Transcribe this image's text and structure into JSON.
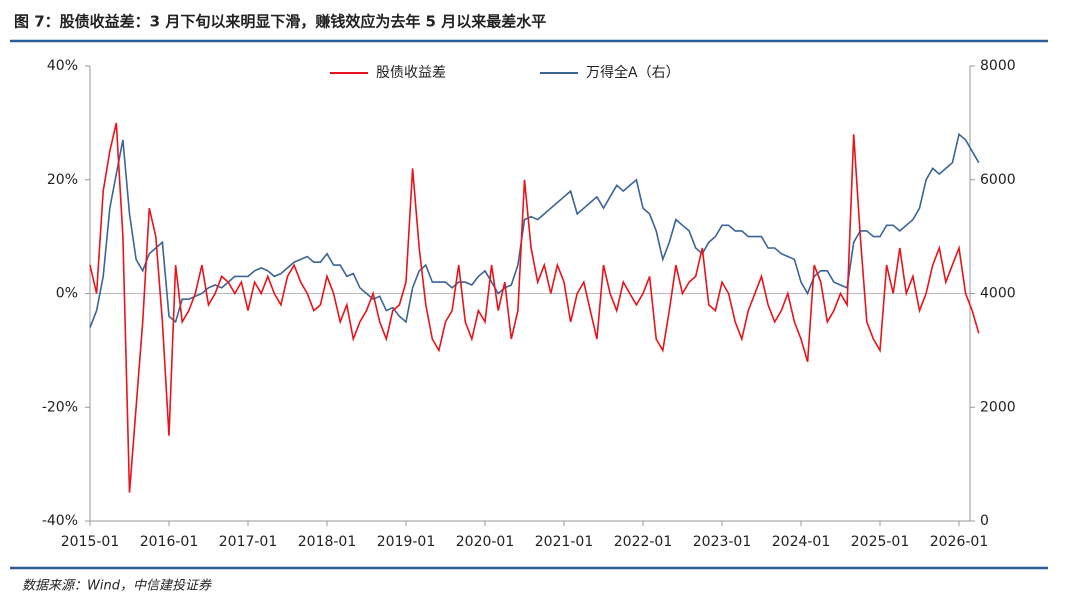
{
  "chart_data": {
    "type": "line",
    "title": "图 7：股债收益差：3 月下旬以来明显下滑，赚钱效应为去年 5 月以来最差水平",
    "source": "数据来源：Wind，中信建投证券",
    "x": [
      "2015-01",
      "2015-02",
      "2015-03",
      "2015-04",
      "2015-05",
      "2015-06",
      "2015-07",
      "2015-08",
      "2015-09",
      "2015-10",
      "2015-11",
      "2015-12",
      "2016-01",
      "2016-02",
      "2016-03",
      "2016-04",
      "2016-05",
      "2016-06",
      "2016-07",
      "2016-08",
      "2016-09",
      "2016-10",
      "2016-11",
      "2016-12",
      "2017-01",
      "2017-02",
      "2017-03",
      "2017-04",
      "2017-05",
      "2017-06",
      "2017-07",
      "2017-08",
      "2017-09",
      "2017-10",
      "2017-11",
      "2017-12",
      "2018-01",
      "2018-02",
      "2018-03",
      "2018-04",
      "2018-05",
      "2018-06",
      "2018-07",
      "2018-08",
      "2018-09",
      "2018-10",
      "2018-11",
      "2018-12",
      "2019-01",
      "2019-02",
      "2019-03",
      "2019-04",
      "2019-05",
      "2019-06",
      "2019-07",
      "2019-08",
      "2019-09",
      "2019-10",
      "2019-11",
      "2019-12",
      "2020-01",
      "2020-02",
      "2020-03",
      "2020-04",
      "2020-05",
      "2020-06",
      "2020-07",
      "2020-08",
      "2020-09",
      "2020-10",
      "2020-11",
      "2020-12",
      "2021-01",
      "2021-02",
      "2021-03",
      "2021-04",
      "2021-05",
      "2021-06",
      "2021-07",
      "2021-08",
      "2021-09",
      "2021-10",
      "2021-11",
      "2021-12",
      "2022-01",
      "2022-02",
      "2022-03",
      "2022-04",
      "2022-05",
      "2022-06",
      "2022-07",
      "2022-08",
      "2022-09",
      "2022-10",
      "2022-11",
      "2022-12",
      "2023-01",
      "2023-02",
      "2023-03",
      "2023-04",
      "2023-05",
      "2023-06",
      "2023-07",
      "2023-08",
      "2023-09",
      "2023-10",
      "2023-11",
      "2023-12",
      "2024-01",
      "2024-02",
      "2024-03",
      "2024-04",
      "2024-05",
      "2024-06",
      "2024-07",
      "2024-08",
      "2024-09",
      "2024-10",
      "2024-11",
      "2024-12",
      "2025-01",
      "2025-02",
      "2025-03",
      "2025-04",
      "2025-05",
      "2025-06",
      "2025-07",
      "2025-08",
      "2025-09",
      "2025-10",
      "2025-11",
      "2025-12",
      "2026-01",
      "2026-02",
      "2026-03",
      "2026-04"
    ],
    "xticks": [
      0,
      12,
      24,
      36,
      48,
      60,
      72,
      84,
      96,
      108,
      120,
      132
    ],
    "ylim": [
      -40,
      40
    ],
    "yticks": [
      {
        "value": -40,
        "label": "-40%"
      },
      {
        "value": -20,
        "label": "-20%"
      },
      {
        "value": 0,
        "label": "0%"
      },
      {
        "value": 20,
        "label": "20%"
      },
      {
        "value": 40,
        "label": "40%"
      }
    ],
    "y2lim": [
      0,
      8000
    ],
    "y2ticks": [
      0,
      2000,
      4000,
      6000,
      8000
    ],
    "series": [
      {
        "name": "股债收益差",
        "color": "#e8141b",
        "values": [
          5,
          0,
          18,
          25,
          30,
          10,
          -35,
          -20,
          -5,
          15,
          10,
          -5,
          -25,
          5,
          -5,
          -3,
          0,
          5,
          -2,
          0,
          3,
          2,
          0,
          2,
          -3,
          2,
          0,
          3,
          0,
          -2,
          3,
          5,
          2,
          0,
          -3,
          -2,
          3,
          0,
          -5,
          -2,
          -8,
          -5,
          -3,
          0,
          -5,
          -8,
          -3,
          -2,
          2,
          22,
          8,
          -2,
          -8,
          -10,
          -5,
          -3,
          5,
          -5,
          -8,
          -3,
          -5,
          5,
          -3,
          2,
          -8,
          -3,
          20,
          8,
          2,
          5,
          0,
          5,
          2,
          -5,
          0,
          2,
          -3,
          -8,
          5,
          0,
          -3,
          2,
          0,
          -2,
          0,
          3,
          -8,
          -10,
          -3,
          5,
          0,
          2,
          3,
          8,
          -2,
          -3,
          2,
          0,
          -5,
          -8,
          -3,
          0,
          3,
          -2,
          -5,
          -3,
          0,
          -5,
          -8,
          -12,
          5,
          2,
          -5,
          -3,
          0,
          -2,
          28,
          10,
          -5,
          -8,
          -10,
          5,
          0,
          8,
          0,
          3,
          -3,
          0,
          5,
          8,
          2,
          5,
          8,
          0,
          -3,
          -7
        ]
      },
      {
        "name": "万得全A（右）",
        "color": "#3b6497",
        "axis": "y2",
        "values": [
          3400,
          3700,
          4300,
          5500,
          6100,
          6700,
          5400,
          4600,
          4400,
          4700,
          4800,
          4900,
          3600,
          3500,
          3900,
          3900,
          3950,
          4000,
          4100,
          4150,
          4100,
          4200,
          4300,
          4300,
          4300,
          4400,
          4450,
          4400,
          4300,
          4350,
          4450,
          4550,
          4600,
          4650,
          4550,
          4550,
          4700,
          4500,
          4500,
          4300,
          4350,
          4100,
          4000,
          3900,
          3950,
          3700,
          3750,
          3600,
          3500,
          4100,
          4400,
          4500,
          4200,
          4200,
          4200,
          4100,
          4200,
          4200,
          4150,
          4300,
          4400,
          4200,
          4000,
          4100,
          4150,
          4500,
          5300,
          5350,
          5300,
          5400,
          5500,
          5600,
          5700,
          5800,
          5400,
          5500,
          5600,
          5700,
          5500,
          5700,
          5900,
          5800,
          5900,
          6000,
          5500,
          5400,
          5100,
          4600,
          4900,
          5300,
          5200,
          5100,
          4800,
          4700,
          4900,
          5000,
          5200,
          5200,
          5100,
          5100,
          5000,
          5000,
          5000,
          4800,
          4800,
          4700,
          4650,
          4600,
          4200,
          4000,
          4300,
          4400,
          4400,
          4200,
          4150,
          4100,
          4900,
          5100,
          5100,
          5000,
          5000,
          5200,
          5200,
          5100,
          5200,
          5300,
          5500,
          6000,
          6200,
          6100,
          6200,
          6300,
          6800,
          6700,
          6500,
          6300
        ]
      }
    ]
  }
}
